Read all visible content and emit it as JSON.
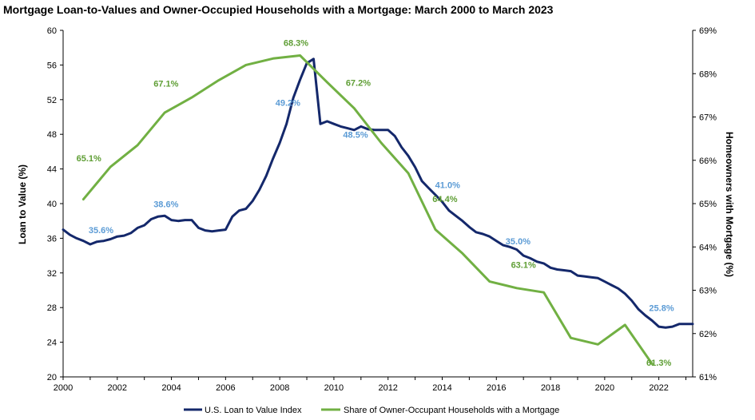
{
  "chart_data": {
    "type": "line",
    "title": "Mortgage Loan-to-Values and Owner-Occupied Households with a Mortgage:  March 2000 to March 2023",
    "ylabel": "Loan to Value (%)",
    "y2label": "Homeowners with Mortgage (%)",
    "xlim": [
      2000,
      2023.25
    ],
    "ylim": [
      20,
      60
    ],
    "y2lim": [
      61,
      69
    ],
    "x_ticks": [
      "2000",
      "2002",
      "2004",
      "2006",
      "2008",
      "2010",
      "2012",
      "2014",
      "2016",
      "2018",
      "2020",
      "2022"
    ],
    "y_ticks": [
      "20",
      "24",
      "28",
      "32",
      "36",
      "40",
      "44",
      "48",
      "52",
      "56",
      "60"
    ],
    "y2_ticks": [
      "61%",
      "62%",
      "63%",
      "64%",
      "65%",
      "66%",
      "67%",
      "68%",
      "69%"
    ],
    "grid": false,
    "legend_position": "bottom",
    "series": [
      {
        "name": "U.S. Loan to Value Index",
        "color": "#14286b",
        "axis": "left",
        "x": [
          2000.0,
          2000.25,
          2000.5,
          2000.75,
          2001.0,
          2001.25,
          2001.5,
          2001.75,
          2002.0,
          2002.25,
          2002.5,
          2002.75,
          2003.0,
          2003.25,
          2003.5,
          2003.75,
          2004.0,
          2004.25,
          2004.5,
          2004.75,
          2005.0,
          2005.25,
          2005.5,
          2005.75,
          2006.0,
          2006.25,
          2006.5,
          2006.75,
          2007.0,
          2007.25,
          2007.5,
          2007.75,
          2008.0,
          2008.25,
          2008.5,
          2008.75,
          2009.0,
          2009.25,
          2009.5,
          2009.75,
          2010.0,
          2010.25,
          2010.5,
          2010.75,
          2011.0,
          2011.25,
          2011.5,
          2011.75,
          2012.0,
          2012.25,
          2012.5,
          2012.75,
          2013.0,
          2013.25,
          2013.5,
          2013.75,
          2014.0,
          2014.25,
          2014.5,
          2014.75,
          2015.0,
          2015.25,
          2015.5,
          2015.75,
          2016.0,
          2016.25,
          2016.5,
          2016.75,
          2017.0,
          2017.25,
          2017.5,
          2017.75,
          2018.0,
          2018.25,
          2018.5,
          2018.75,
          2019.0,
          2019.25,
          2019.5,
          2019.75,
          2020.0,
          2020.25,
          2020.5,
          2020.75,
          2021.0,
          2021.25,
          2021.5,
          2021.75,
          2022.0,
          2022.25,
          2022.5,
          2022.75,
          2023.0,
          2023.25
        ],
        "values": [
          37.0,
          36.4,
          36.0,
          35.7,
          35.3,
          35.6,
          35.7,
          35.9,
          36.2,
          36.3,
          36.6,
          37.2,
          37.5,
          38.2,
          38.5,
          38.6,
          38.1,
          38.0,
          38.1,
          38.1,
          37.2,
          36.9,
          36.8,
          36.9,
          37.0,
          38.5,
          39.2,
          39.4,
          40.3,
          41.6,
          43.2,
          45.2,
          47.0,
          49.2,
          52.2,
          54.3,
          56.2,
          56.7,
          49.2,
          49.5,
          49.2,
          48.9,
          48.7,
          48.5,
          48.9,
          48.6,
          48.5,
          48.5,
          48.5,
          47.8,
          46.5,
          45.5,
          44.2,
          42.6,
          41.8,
          41.0,
          40.2,
          39.2,
          38.6,
          38.0,
          37.3,
          36.7,
          36.5,
          36.2,
          35.7,
          35.2,
          35.0,
          34.7,
          34.0,
          33.7,
          33.3,
          33.1,
          32.6,
          32.4,
          32.3,
          32.2,
          31.7,
          31.6,
          31.5,
          31.4,
          31.0,
          30.6,
          30.2,
          29.6,
          28.8,
          27.8,
          27.1,
          26.5,
          25.8,
          25.7,
          25.8,
          26.1,
          26.1,
          26.1
        ]
      },
      {
        "name": "Share of Owner-Occupant Households with a Mortgage",
        "color": "#71b043",
        "axis": "right",
        "x": [
          2000.75,
          2001.75,
          2002.75,
          2003.75,
          2004.75,
          2005.75,
          2006.75,
          2007.75,
          2008.75,
          2009.75,
          2010.75,
          2011.75,
          2012.75,
          2013.75,
          2014.75,
          2015.75,
          2016.75,
          2017.75,
          2018.75,
          2019.75,
          2020.75,
          2021.75
        ],
        "values": [
          65.1,
          65.85,
          66.35,
          67.1,
          67.45,
          67.85,
          68.2,
          68.35,
          68.42,
          67.8,
          67.2,
          66.4,
          65.7,
          64.4,
          63.85,
          63.2,
          63.05,
          62.95,
          61.9,
          61.75,
          62.2,
          61.3
        ]
      }
    ],
    "annotations": [
      {
        "text": "35.6%",
        "series": 0
      },
      {
        "text": "38.6%",
        "series": 0
      },
      {
        "text": "49.2%",
        "series": 0
      },
      {
        "text": "48.5%",
        "series": 0
      },
      {
        "text": "41.0%",
        "series": 0
      },
      {
        "text": "35.0%",
        "series": 0
      },
      {
        "text": "25.8%",
        "series": 0
      },
      {
        "text": "65.1%",
        "series": 1
      },
      {
        "text": "67.1%",
        "series": 1
      },
      {
        "text": "68.3%",
        "series": 1
      },
      {
        "text": "67.2%",
        "series": 1
      },
      {
        "text": "64.4%",
        "series": 1
      },
      {
        "text": "63.1%",
        "series": 1
      },
      {
        "text": "61.3%",
        "series": 1
      }
    ],
    "annotation_colors": [
      "#5b9bd5",
      "#5f9e35"
    ]
  }
}
